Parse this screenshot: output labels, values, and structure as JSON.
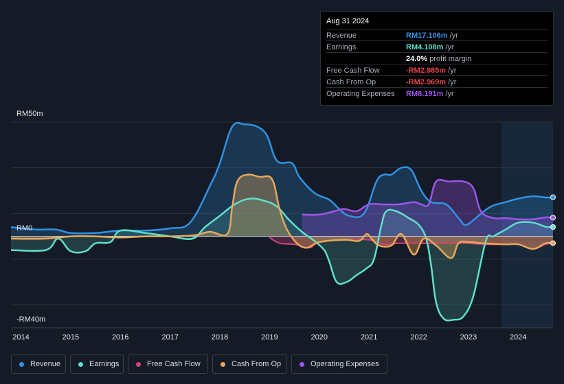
{
  "tooltip": {
    "date": "Aug 31 2024",
    "rows": [
      {
        "label": "Revenue",
        "value": "RM17.106m",
        "unit": " /yr",
        "color": "#2f94e6"
      },
      {
        "label": "Earnings",
        "value": "RM4.108m",
        "unit": " /yr",
        "color": "#5fe0cd"
      },
      {
        "label": "",
        "value": "24.0%",
        "unit": " profit margin",
        "color": "#ffffff"
      },
      {
        "label": "Free Cash Flow",
        "value": "-RM2.985m",
        "unit": " /yr",
        "color": "#e8434a"
      },
      {
        "label": "Cash From Op",
        "value": "-RM2.969m",
        "unit": " /yr",
        "color": "#e8434a"
      },
      {
        "label": "Operating Expenses",
        "value": "RM8.191m",
        "unit": " /yr",
        "color": "#9f54e8"
      }
    ]
  },
  "legend": [
    {
      "label": "Revenue",
      "color": "#2f94e6"
    },
    {
      "label": "Earnings",
      "color": "#5fe0cd"
    },
    {
      "label": "Free Cash Flow",
      "color": "#d0457a"
    },
    {
      "label": "Cash From Op",
      "color": "#e8a85a"
    },
    {
      "label": "Operating Expenses",
      "color": "#9f54e8"
    }
  ],
  "chart_data": {
    "type": "area",
    "title": "",
    "xlabel": "",
    "ylabel": "",
    "y_top_label": "RM50m",
    "y_zero_label": "RM0",
    "y_bottom_label": "-RM40m",
    "ylim": [
      -40,
      50
    ],
    "xlim": [
      2013.8,
      2024.7
    ],
    "x_ticks": [
      "2014",
      "2015",
      "2016",
      "2017",
      "2018",
      "2019",
      "2020",
      "2021",
      "2022",
      "2023",
      "2024"
    ],
    "forecast_start": 2023.67,
    "series": [
      {
        "name": "Revenue",
        "color": "#2f94e6",
        "points": [
          [
            2013.8,
            4
          ],
          [
            2014.3,
            3
          ],
          [
            2014.7,
            3
          ],
          [
            2015.0,
            1.5
          ],
          [
            2015.5,
            1.5
          ],
          [
            2016.0,
            2.5
          ],
          [
            2016.5,
            2.5
          ],
          [
            2017.0,
            3.5
          ],
          [
            2017.4,
            6
          ],
          [
            2017.8,
            22
          ],
          [
            2018.0,
            32
          ],
          [
            2018.25,
            48
          ],
          [
            2018.5,
            49
          ],
          [
            2018.75,
            48
          ],
          [
            2018.95,
            44
          ],
          [
            2019.15,
            33
          ],
          [
            2019.45,
            32
          ],
          [
            2019.6,
            26
          ],
          [
            2019.9,
            19
          ],
          [
            2020.2,
            16
          ],
          [
            2020.4,
            12
          ],
          [
            2020.6,
            9
          ],
          [
            2020.9,
            10
          ],
          [
            2021.15,
            24
          ],
          [
            2021.3,
            27
          ],
          [
            2021.45,
            27
          ],
          [
            2021.65,
            30
          ],
          [
            2021.85,
            29
          ],
          [
            2022.05,
            20
          ],
          [
            2022.25,
            15
          ],
          [
            2022.55,
            14
          ],
          [
            2022.8,
            8
          ],
          [
            2022.95,
            5
          ],
          [
            2023.2,
            9
          ],
          [
            2023.45,
            13
          ],
          [
            2023.75,
            15
          ],
          [
            2024.0,
            16.5
          ],
          [
            2024.3,
            17.5
          ],
          [
            2024.55,
            17
          ],
          [
            2024.7,
            17.1
          ]
        ]
      },
      {
        "name": "Earnings",
        "color": "#5fe0cd",
        "points": [
          [
            2013.8,
            -6
          ],
          [
            2014.5,
            -6
          ],
          [
            2014.75,
            -1
          ],
          [
            2015.0,
            -6.5
          ],
          [
            2015.3,
            -6.5
          ],
          [
            2015.5,
            -3
          ],
          [
            2015.8,
            -2.5
          ],
          [
            2016.0,
            2.5
          ],
          [
            2016.5,
            1.5
          ],
          [
            2017.0,
            0
          ],
          [
            2017.45,
            -1
          ],
          [
            2017.7,
            4
          ],
          [
            2018.0,
            9
          ],
          [
            2018.3,
            14
          ],
          [
            2018.6,
            16.5
          ],
          [
            2018.9,
            15.5
          ],
          [
            2019.15,
            13
          ],
          [
            2019.4,
            7
          ],
          [
            2019.65,
            2
          ],
          [
            2019.9,
            -2
          ],
          [
            2020.1,
            -6
          ],
          [
            2020.2,
            -11
          ],
          [
            2020.35,
            -20
          ],
          [
            2020.55,
            -20
          ],
          [
            2020.75,
            -17
          ],
          [
            2020.95,
            -14
          ],
          [
            2021.1,
            -10
          ],
          [
            2021.25,
            5
          ],
          [
            2021.35,
            11
          ],
          [
            2021.55,
            11
          ],
          [
            2021.8,
            8
          ],
          [
            2022.0,
            5
          ],
          [
            2022.15,
            -1
          ],
          [
            2022.25,
            -13
          ],
          [
            2022.35,
            -29
          ],
          [
            2022.5,
            -36
          ],
          [
            2022.7,
            -36.5
          ],
          [
            2022.9,
            -35
          ],
          [
            2023.1,
            -26
          ],
          [
            2023.35,
            -2
          ],
          [
            2023.5,
            0
          ],
          [
            2023.75,
            3
          ],
          [
            2024.0,
            6
          ],
          [
            2024.3,
            6
          ],
          [
            2024.55,
            4.2
          ],
          [
            2024.7,
            4.1
          ]
        ]
      },
      {
        "name": "Free Cash Flow",
        "color": "#d0457a",
        "points": [
          [
            2019.0,
            -0.5
          ],
          [
            2019.2,
            -3
          ],
          [
            2019.5,
            -3.5
          ],
          [
            2019.8,
            -5
          ],
          [
            2020.0,
            -2.5
          ],
          [
            2020.5,
            -1.5
          ],
          [
            2021.0,
            -1.5
          ],
          [
            2021.3,
            -3.5
          ],
          [
            2021.6,
            -3
          ],
          [
            2022.0,
            -3
          ],
          [
            2022.4,
            -3
          ],
          [
            2022.7,
            -3
          ],
          [
            2023.0,
            -3
          ],
          [
            2023.3,
            -3.5
          ],
          [
            2023.75,
            -3.5
          ],
          [
            2024.0,
            -3.5
          ],
          [
            2024.3,
            -5.5
          ],
          [
            2024.55,
            -3.5
          ],
          [
            2024.7,
            -3
          ]
        ]
      },
      {
        "name": "Cash From Op",
        "color": "#e8a85a",
        "points": [
          [
            2013.8,
            -1
          ],
          [
            2014.5,
            -1
          ],
          [
            2015.0,
            0
          ],
          [
            2015.5,
            0
          ],
          [
            2016.0,
            -0.5
          ],
          [
            2016.5,
            0
          ],
          [
            2017.0,
            0
          ],
          [
            2017.5,
            0.5
          ],
          [
            2017.8,
            2
          ],
          [
            2018.15,
            1
          ],
          [
            2018.25,
            13
          ],
          [
            2018.35,
            24
          ],
          [
            2018.55,
            27
          ],
          [
            2018.8,
            26
          ],
          [
            2019.05,
            25
          ],
          [
            2019.2,
            12
          ],
          [
            2019.35,
            3
          ],
          [
            2019.55,
            -3
          ],
          [
            2019.75,
            -5
          ],
          [
            2020.0,
            -2.5
          ],
          [
            2020.5,
            -1.5
          ],
          [
            2020.8,
            -2
          ],
          [
            2020.95,
            1
          ],
          [
            2021.05,
            -1
          ],
          [
            2021.2,
            -4
          ],
          [
            2021.45,
            -4
          ],
          [
            2021.65,
            1
          ],
          [
            2021.9,
            -8
          ],
          [
            2022.1,
            -1
          ],
          [
            2022.35,
            -4
          ],
          [
            2022.65,
            -9.5
          ],
          [
            2022.8,
            -3
          ],
          [
            2023.0,
            -2.5
          ],
          [
            2023.3,
            -3
          ],
          [
            2023.75,
            -3.5
          ],
          [
            2024.0,
            -3.5
          ],
          [
            2024.3,
            -5.5
          ],
          [
            2024.55,
            -3
          ],
          [
            2024.7,
            -3
          ]
        ]
      },
      {
        "name": "Operating Expenses",
        "color": "#9f54e8",
        "points": [
          [
            2019.65,
            9.5
          ],
          [
            2020.0,
            9.5
          ],
          [
            2020.3,
            11
          ],
          [
            2020.5,
            12
          ],
          [
            2020.75,
            11
          ],
          [
            2021.0,
            14
          ],
          [
            2021.3,
            14
          ],
          [
            2021.6,
            14
          ],
          [
            2021.9,
            15
          ],
          [
            2022.05,
            14
          ],
          [
            2022.2,
            14
          ],
          [
            2022.35,
            24
          ],
          [
            2022.6,
            24
          ],
          [
            2022.9,
            24
          ],
          [
            2023.1,
            21
          ],
          [
            2023.25,
            11
          ],
          [
            2023.5,
            8
          ],
          [
            2023.75,
            8
          ],
          [
            2024.0,
            7.5
          ],
          [
            2024.3,
            7.5
          ],
          [
            2024.55,
            8.3
          ],
          [
            2024.7,
            8.2
          ]
        ]
      }
    ]
  }
}
